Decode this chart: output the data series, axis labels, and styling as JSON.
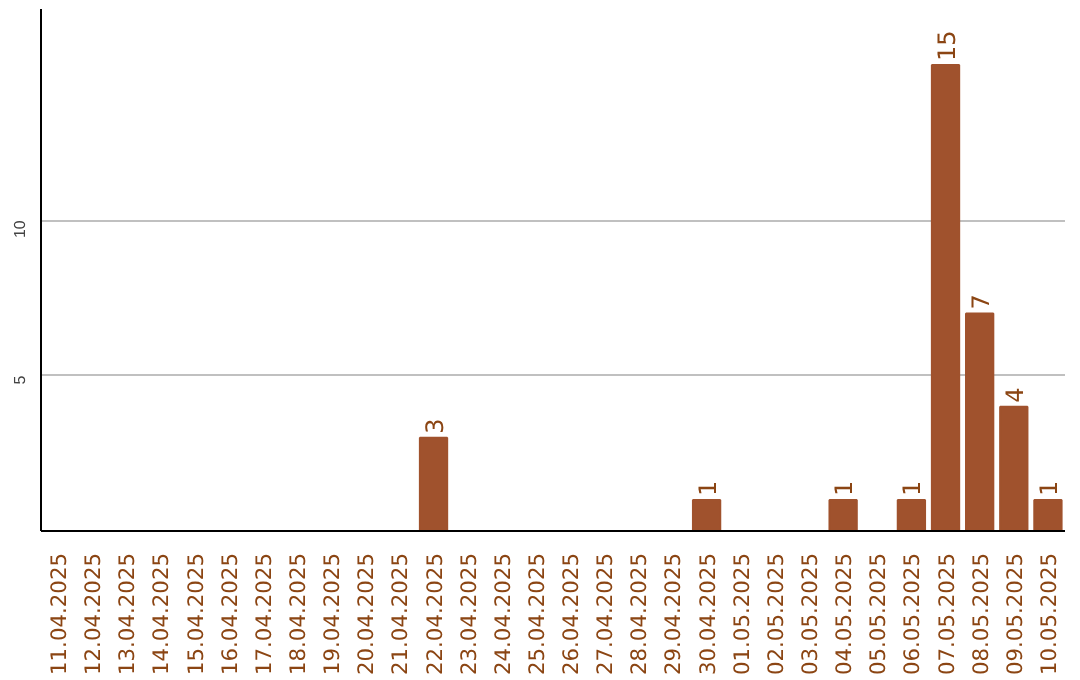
{
  "chart_data": {
    "type": "bar",
    "categories": [
      "11.04.2025",
      "12.04.2025",
      "13.04.2025",
      "14.04.2025",
      "15.04.2025",
      "16.04.2025",
      "17.04.2025",
      "18.04.2025",
      "19.04.2025",
      "20.04.2025",
      "21.04.2025",
      "22.04.2025",
      "23.04.2025",
      "24.04.2025",
      "25.04.2025",
      "26.04.2025",
      "27.04.2025",
      "28.04.2025",
      "29.04.2025",
      "30.04.2025",
      "01.05.2025",
      "02.05.2025",
      "03.05.2025",
      "04.05.2025",
      "05.05.2025",
      "06.05.2025",
      "07.05.2025",
      "08.05.2025",
      "09.05.2025",
      "10.05.2025"
    ],
    "values": [
      0,
      0,
      0,
      0,
      0,
      0,
      0,
      0,
      0,
      0,
      0,
      3,
      0,
      0,
      0,
      0,
      0,
      0,
      0,
      1,
      0,
      0,
      0,
      1,
      0,
      1,
      15,
      7,
      4,
      1
    ],
    "value_labels": [
      null,
      null,
      null,
      null,
      null,
      null,
      null,
      null,
      null,
      null,
      null,
      "3",
      null,
      null,
      null,
      null,
      null,
      null,
      null,
      "1",
      null,
      null,
      null,
      "1",
      null,
      "1",
      "15",
      "7",
      "4",
      "1"
    ],
    "color": "#a0522d",
    "ylim": [
      0,
      16.8
    ],
    "yticks": [
      5,
      10
    ],
    "grid": "y"
  }
}
